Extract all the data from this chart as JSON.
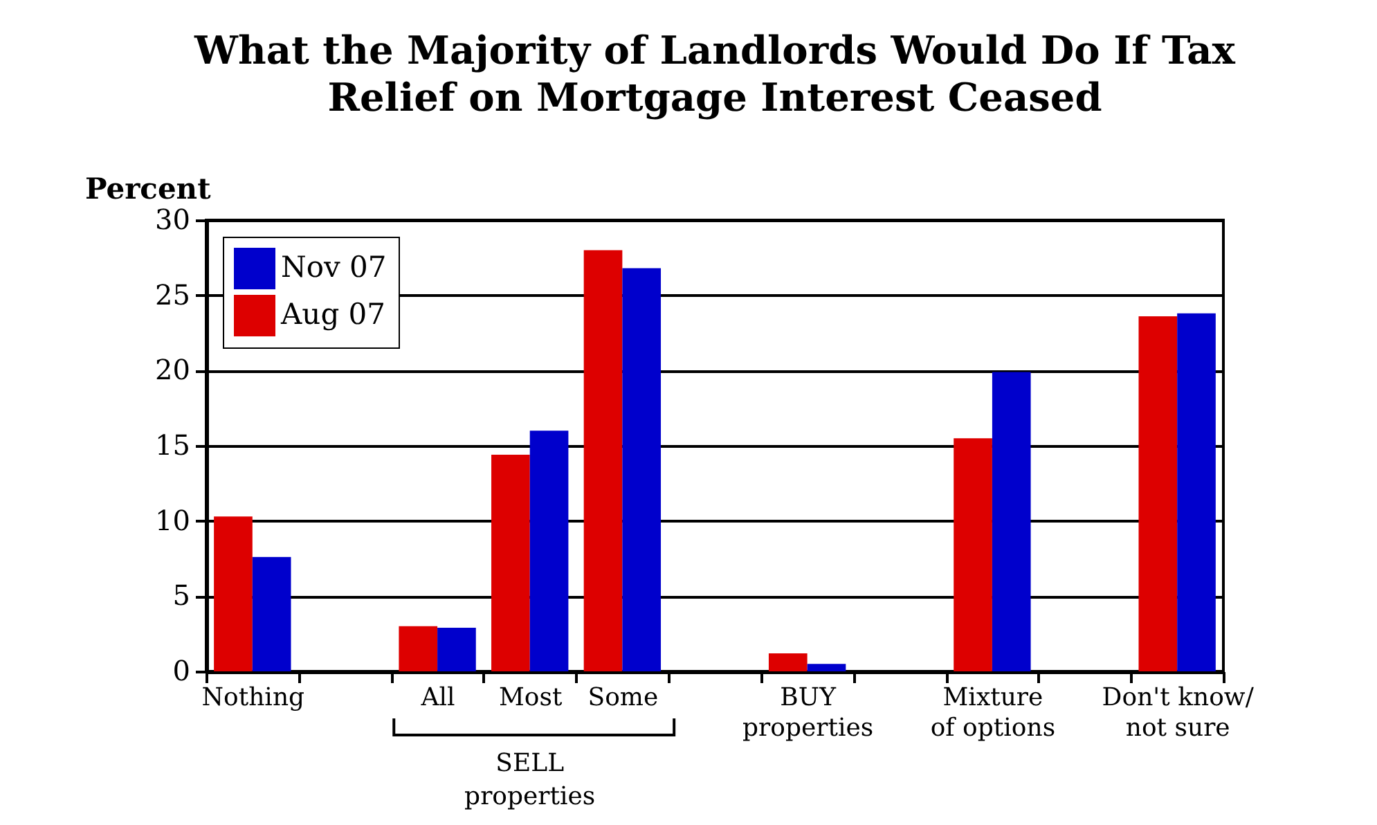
{
  "chart_data": {
    "type": "bar",
    "title": "What the Majority of Landlords Would Do If Tax\nRelief on Mortgage Interest Ceased",
    "ylabel": "Percent",
    "categories": [
      "Nothing",
      null,
      "All",
      "Most",
      "Some",
      null,
      "BUY\nproperties",
      null,
      "Mixture\nof options",
      null,
      "Don't know/\nnot sure"
    ],
    "series": [
      {
        "name": "Aug 07",
        "color": "#dd0000",
        "values": [
          10.3,
          null,
          3.0,
          14.4,
          28.0,
          null,
          1.2,
          null,
          15.5,
          0,
          23.6
        ]
      },
      {
        "name": "Nov 07",
        "color": "#0000cc",
        "values": [
          7.6,
          null,
          2.9,
          16.0,
          26.8,
          null,
          0.5,
          null,
          19.9,
          0,
          23.8
        ]
      }
    ],
    "ylim": [
      0,
      30
    ],
    "yticks": [
      0,
      5,
      10,
      15,
      20,
      25,
      30
    ],
    "grid": "y",
    "legend": "top left",
    "annotations": [
      "SELL\nproperties"
    ]
  }
}
